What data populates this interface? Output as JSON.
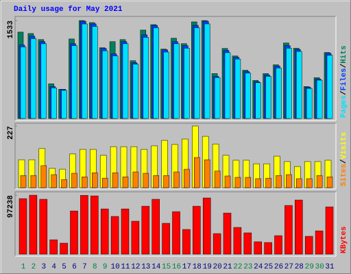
{
  "title": "Daily usage for May 2021",
  "separator": "/",
  "chart_data": [
    {
      "type": "bar",
      "ylim": [
        0,
        1533
      ],
      "yticks": [
        1533
      ],
      "series": [
        {
          "name": "Hits",
          "color": "#00805c",
          "values": [
            1352,
            1330,
            1235,
            543,
            458,
            1245,
            1533,
            1501,
            1107,
            1203,
            1235,
            905,
            1384,
            1469,
            1086,
            1256,
            1171,
            1512,
            1533,
            703,
            1097,
            979,
            756,
            596,
            703,
            841,
            1182,
            1100,
            500,
            639,
            1033
          ]
        },
        {
          "name": "Files",
          "color": "#0040ff",
          "values": [
            1150,
            1288,
            1203,
            500,
            458,
            1171,
            1522,
            1480,
            1097,
            1011,
            1203,
            873,
            1309,
            1458,
            1075,
            1203,
            1139,
            1458,
            1522,
            660,
            1065,
            958,
            735,
            575,
            681,
            820,
            1139,
            1080,
            490,
            617,
            1022
          ]
        },
        {
          "name": "Pages",
          "color": "#00e0ff",
          "values": [
            1120,
            1250,
            1170,
            480,
            440,
            1140,
            1480,
            1440,
            1060,
            980,
            1170,
            850,
            1270,
            1420,
            1040,
            1170,
            1100,
            1420,
            1480,
            640,
            1030,
            930,
            710,
            560,
            660,
            790,
            1100,
            1050,
            470,
            600,
            990
          ]
        }
      ]
    },
    {
      "type": "bar",
      "ylim": [
        0,
        227
      ],
      "yticks": [
        227
      ],
      "series": [
        {
          "name": "Visits",
          "color": "#ffff00",
          "values": [
            103,
            103,
            144,
            71,
            68,
            124,
            141,
            141,
            119,
            151,
            151,
            151,
            141,
            154,
            174,
            159,
            179,
            227,
            189,
            161,
            119,
            101,
            101,
            88,
            88,
            116,
            96,
            78,
            96,
            96,
            101
          ]
        },
        {
          "name": "Sites",
          "color": "#ff8000",
          "values": [
            45,
            45,
            81,
            48,
            30,
            53,
            40,
            55,
            35,
            55,
            40,
            58,
            53,
            45,
            45,
            58,
            68,
            111,
            103,
            61,
            43,
            38,
            38,
            33,
            35,
            45,
            48,
            33,
            33,
            45,
            40
          ]
        }
      ]
    },
    {
      "type": "bar",
      "ylim": [
        0,
        97238
      ],
      "yticks": [
        97238
      ],
      "categories": [
        "1",
        "2",
        "3",
        "4",
        "5",
        "6",
        "7",
        "8",
        "9",
        "10",
        "11",
        "12",
        "13",
        "14",
        "15",
        "16",
        "17",
        "18",
        "19",
        "20",
        "21",
        "22",
        "23",
        "24",
        "25",
        "26",
        "27",
        "28",
        "29",
        "30",
        "31"
      ],
      "label_colors": [
        "#008040",
        "#008040",
        "#000080",
        "#000080",
        "#000080",
        "#000080",
        "#000080",
        "#008040",
        "#008040",
        "#000080",
        "#000080",
        "#000080",
        "#000080",
        "#000080",
        "#008040",
        "#008040",
        "#000080",
        "#000080",
        "#000080",
        "#000080",
        "#000080",
        "#008040",
        "#008040",
        "#000080",
        "#000080",
        "#000080",
        "#000080",
        "#000080",
        "#008040",
        "#008040",
        "#000080"
      ],
      "series": [
        {
          "name": "KBytes",
          "color": "#ff0000",
          "values": [
            91600,
            97238,
            90500,
            23700,
            18100,
            71200,
            97000,
            96100,
            74600,
            62200,
            74600,
            54300,
            79100,
            90500,
            50900,
            70100,
            40700,
            79100,
            92700,
            33900,
            67800,
            44100,
            35100,
            20400,
            19200,
            30500,
            80300,
            89300,
            29400,
            38400,
            78000
          ]
        }
      ]
    }
  ]
}
